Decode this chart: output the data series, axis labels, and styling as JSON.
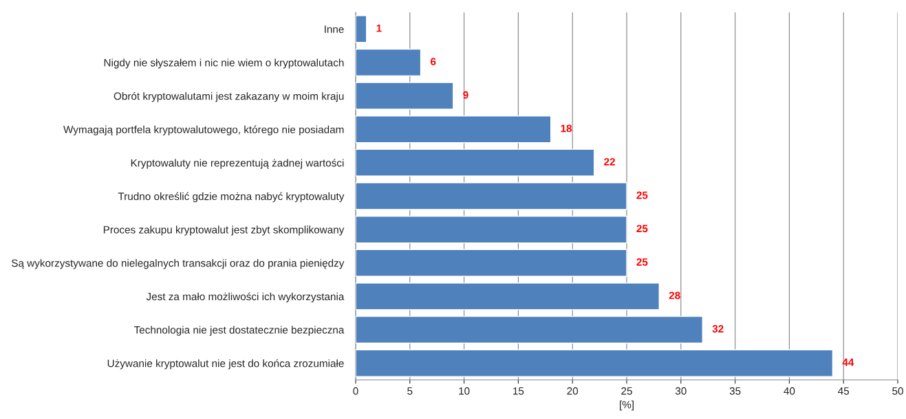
{
  "chart_data": {
    "type": "bar",
    "orientation": "horizontal",
    "xlabel": "[%]",
    "categories": [
      "Inne",
      "Nigdy nie słyszałem i nic nie wiem o kryptowalutach",
      "Obrót kryptowalutami jest zakazany w moim kraju",
      "Wymagają portfela kryptowalutowego, którego nie posiadam",
      "Kryptowaluty nie reprezentują żadnej wartości",
      "Trudno określić gdzie można nabyć kryptowaluty",
      "Proces zakupu kryptowalut jest zbyt skomplikowany",
      "Są wykorzystywane do nielegalnych transakcji oraz do prania pieniędzy",
      "Jest za mało możliwości ich wykorzystania",
      "Technologia nie jest dostatecznie bezpieczna",
      "Używanie kryptowalut nie jest do końca zrozumiałe"
    ],
    "values": [
      1,
      6,
      9,
      18,
      22,
      25,
      25,
      25,
      28,
      32,
      44
    ],
    "color": "#4f81bd",
    "xlim": [
      0,
      50
    ],
    "xticks": [
      0,
      5,
      10,
      15,
      20,
      25,
      30,
      35,
      40,
      45,
      50
    ],
    "grid": "x",
    "data_labels": true
  }
}
